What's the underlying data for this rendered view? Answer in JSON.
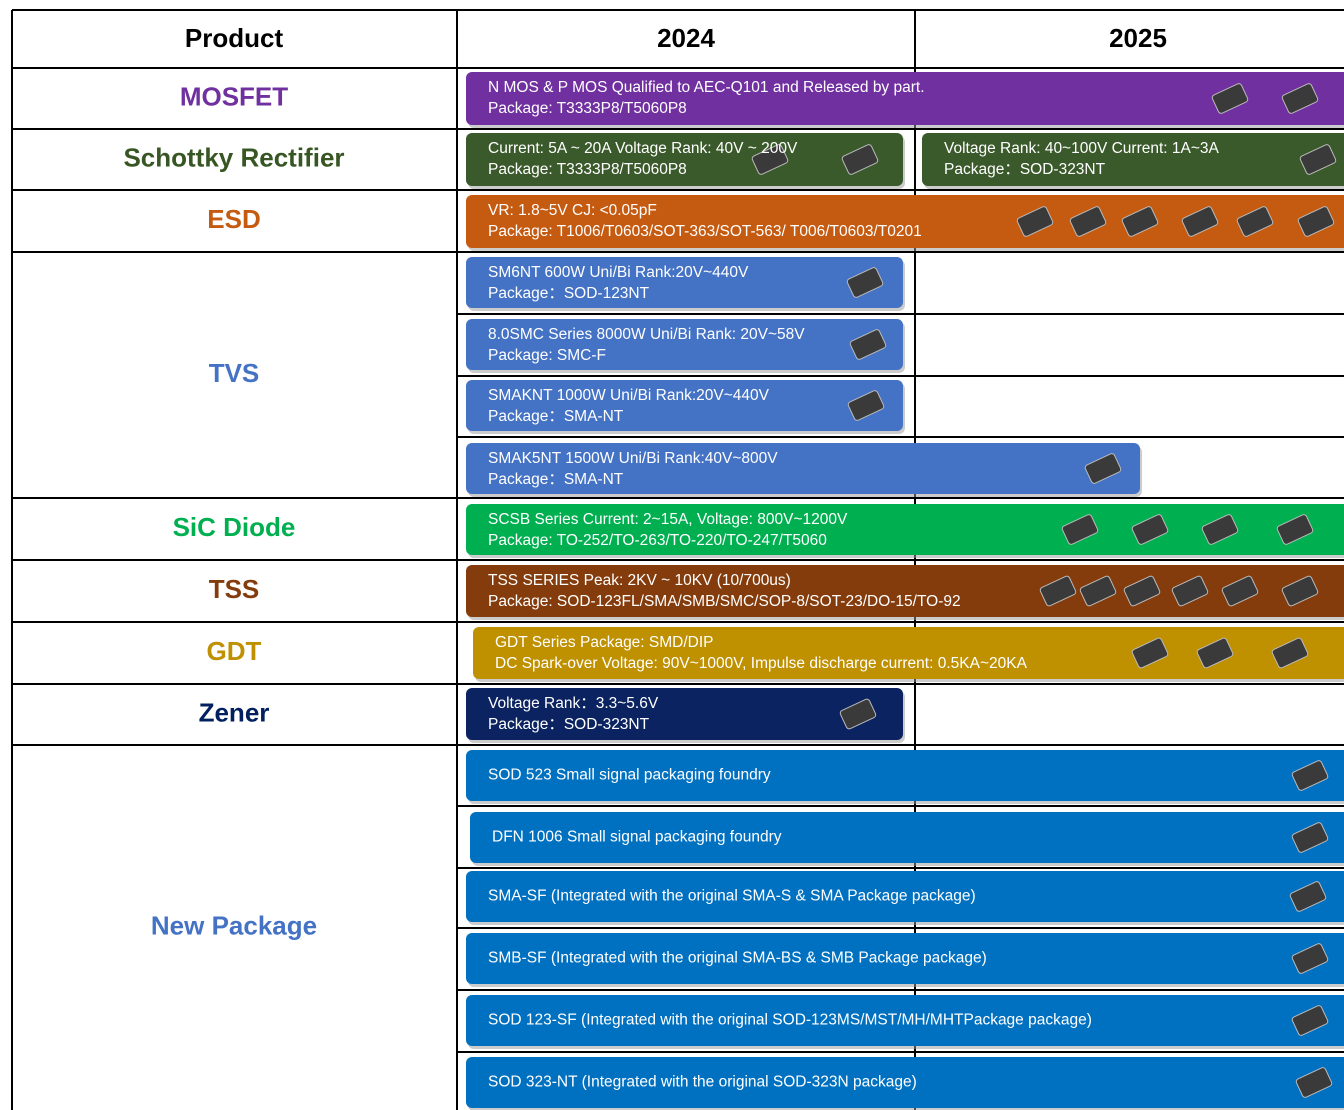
{
  "header": {
    "product": "Product",
    "years": [
      "2024",
      "2025"
    ]
  },
  "rows": [
    {
      "product": "MOSFET",
      "bars": [
        {
          "lines": [
            "N MOS & P MOS  Qualified to AEC-Q101 and Released by part.",
            "Package: T3333P8/T5060P8"
          ]
        }
      ]
    },
    {
      "product": "Schottky Rectifier",
      "bars": [
        {
          "lines": [
            "Current: 5A ~ 20A Voltage Rank: 40V ~ 200V",
            "Package: T3333P8/T5060P8"
          ]
        },
        {
          "lines": [
            "Voltage Rank: 40~100V Current: 1A~3A",
            "Package：SOD-323NT"
          ]
        }
      ]
    },
    {
      "product": "ESD",
      "bars": [
        {
          "lines": [
            "VR: 1.8~5V CJ: <0.05pF",
            "Package: T1006/T0603/SOT-363/SOT-563/ T006/T0603/T0201"
          ]
        }
      ]
    },
    {
      "product": "TVS",
      "bars": [
        {
          "lines": [
            "SM6NT 600W Uni/Bi Rank:20V~440V",
            "Package：SOD-123NT"
          ]
        },
        {
          "lines": [
            "8.0SMC Series 8000W Uni/Bi Rank: 20V~58V",
            "Package: SMC-F"
          ]
        },
        {
          "lines": [
            "SMAKNT  1000W  Uni/Bi Rank:20V~440V",
            "Package：SMA-NT"
          ]
        },
        {
          "lines": [
            "SMAK5NT  1500W Uni/Bi Rank:40V~800V",
            "Package：SMA-NT"
          ]
        }
      ]
    },
    {
      "product": "SiC Diode",
      "bars": [
        {
          "lines": [
            "SCSB Series  Current: 2~15A, Voltage: 800V~1200V",
            "Package: TO-252/TO-263/TO-220/TO-247/T5060"
          ]
        }
      ]
    },
    {
      "product": "TSS",
      "bars": [
        {
          "lines": [
            "TSS SERIES   Peak: 2KV ~ 10KV (10/700us)",
            "Package: SOD-123FL/SMA/SMB/SMC/SOP-8/SOT-23/DO-15/TO-92"
          ]
        }
      ]
    },
    {
      "product": "GDT",
      "bars": [
        {
          "lines": [
            "GDT Series    Package: SMD/DIP",
            "DC Spark-over Voltage: 90V~1000V,  Impulse discharge current: 0.5KA~20KA"
          ]
        }
      ]
    },
    {
      "product": "Zener",
      "bars": [
        {
          "lines": [
            "Voltage Rank：3.3~5.6V",
            "Package：SOD-323NT"
          ]
        }
      ]
    },
    {
      "product": "New Package",
      "bars": [
        {
          "lines": [
            "SOD 523 Small signal packaging foundry"
          ]
        },
        {
          "lines": [
            "DFN 1006 Small signal packaging foundry"
          ]
        },
        {
          "lines": [
            "SMA-SF (Integrated with the original SMA-S & SMA Package package)"
          ]
        },
        {
          "lines": [
            "SMB-SF (Integrated with the original SMA-BS & SMB Package package)"
          ]
        },
        {
          "lines": [
            "SOD 123-SF (Integrated with the original SOD-123MS/MST/MH/MHTPackage  package)"
          ]
        },
        {
          "lines": [
            "SOD 323-NT (Integrated with the original SOD-323N package)"
          ]
        }
      ]
    }
  ]
}
